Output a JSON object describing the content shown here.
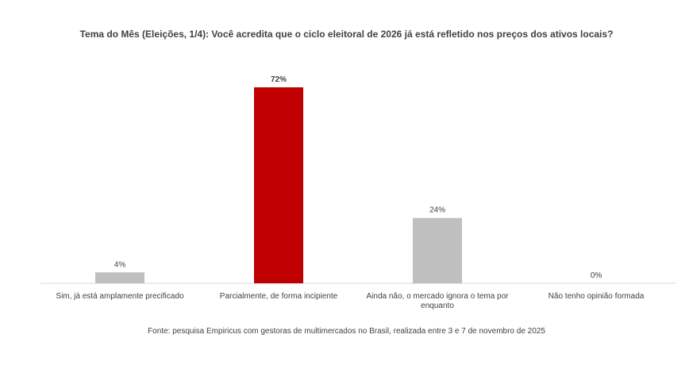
{
  "chart_data": {
    "type": "bar",
    "title": "Tema do Mês (Eleições, 1/4): Você acredita que o ciclo eleitoral de 2026 já está refletido nos preços dos ativos locais?",
    "categories": [
      [
        "Sim, já está amplamente precificado"
      ],
      [
        "Parcialmente, de forma incipiente"
      ],
      [
        "Ainda não, o mercado ignora o tema por",
        "enquanto"
      ],
      [
        "Não tenho opinião formada"
      ]
    ],
    "values": [
      4,
      72,
      24,
      0
    ],
    "data_labels": [
      "4%",
      "72%",
      "24%",
      "0%"
    ],
    "highlight_index": 1,
    "ylim": [
      0,
      80
    ],
    "grid": false,
    "legend": "none",
    "colors": {
      "highlight": "#C00000",
      "default": "#BFBFBF",
      "axis": "#D9D9D9",
      "text": "#404040"
    }
  },
  "footer": {
    "source": "Fonte: pesquisa Empiricus com gestoras de multimercados no Brasil, realizada entre 3 e 7 de novembro de 2025"
  }
}
